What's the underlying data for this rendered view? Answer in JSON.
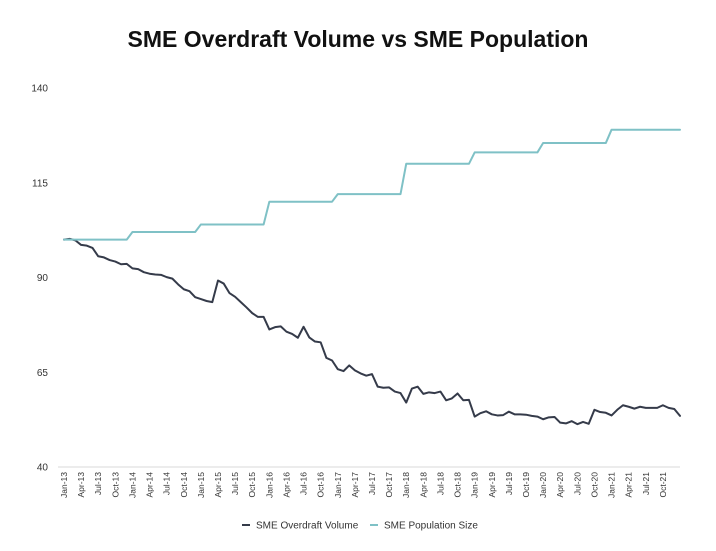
{
  "chart_data": {
    "type": "line",
    "title": "SME Overdraft Volume vs SME Population",
    "xlabel": "",
    "ylabel": "",
    "ylim": [
      40,
      140
    ],
    "yticks": [
      40,
      65,
      90,
      115,
      140
    ],
    "x_tick_labels": [
      "Jan-13",
      "Apr-13",
      "Jul-13",
      "Oct-13",
      "Jan-14",
      "Apr-14",
      "Jul-14",
      "Oct-14",
      "Jan-15",
      "Apr-15",
      "Jul-15",
      "Oct-15",
      "Jan-16",
      "Apr-16",
      "Jul-16",
      "Oct-16",
      "Jan-17",
      "Apr-17",
      "Jul-17",
      "Oct-17",
      "Jan-18",
      "Apr-18",
      "Jul-18",
      "Oct-18",
      "Jan-19",
      "Apr-19",
      "Jul-19",
      "Oct-19",
      "Jan-20",
      "Apr-20",
      "Jul-20",
      "Oct-20",
      "Jan-21",
      "Apr-21",
      "Jul-21",
      "Oct-21"
    ],
    "legend_position": "bottom",
    "series": [
      {
        "name": "SME Overdraft Volume",
        "color": "#353b4a",
        "values": [
          100,
          100.2,
          99.8,
          98.6,
          98.4,
          97.8,
          95.6,
          95.3,
          94.6,
          94.2,
          93.5,
          93.6,
          92.4,
          92.2,
          91.4,
          91.0,
          90.8,
          90.7,
          90.1,
          89.7,
          88.2,
          86.9,
          86.4,
          84.8,
          84.3,
          83.8,
          83.5,
          89.2,
          88.4,
          85.9,
          84.9,
          83.5,
          82.1,
          80.6,
          79.6,
          79.6,
          76.3,
          76.9,
          77.1,
          75.7,
          75.1,
          74.1,
          77.0,
          74.2,
          73.1,
          72.9,
          68.8,
          68.1,
          65.8,
          65.3,
          66.8,
          65.5,
          64.7,
          64.1,
          64.5,
          61.2,
          60.9,
          61.0,
          59.9,
          59.5,
          57.0,
          60.7,
          61.2,
          59.3,
          59.7,
          59.5,
          59.9,
          57.6,
          58.1,
          59.4,
          57.6,
          57.7,
          53.3,
          54.2,
          54.7,
          53.9,
          53.6,
          53.7,
          54.6,
          53.9,
          53.9,
          53.8,
          53.5,
          53.3,
          52.6,
          53.1,
          53.2,
          51.7,
          51.5,
          52.1,
          51.3,
          51.9,
          51.4,
          55.1,
          54.5,
          54.3,
          53.6,
          55.1,
          56.3,
          55.9,
          55.4,
          55.9,
          55.6,
          55.6,
          55.6,
          56.3,
          55.6,
          55.3,
          53.5
        ]
      },
      {
        "name": "SME Population Size",
        "color": "#7fc1c6",
        "values": [
          100,
          100,
          100,
          100,
          100,
          100,
          100,
          100,
          100,
          100,
          100,
          100,
          102,
          102,
          102,
          102,
          102,
          102,
          102,
          102,
          102,
          102,
          102,
          102,
          104,
          104,
          104,
          104,
          104,
          104,
          104,
          104,
          104,
          104,
          104,
          104,
          110,
          110,
          110,
          110,
          110,
          110,
          110,
          110,
          110,
          110,
          110,
          110,
          112,
          112,
          112,
          112,
          112,
          112,
          112,
          112,
          112,
          112,
          112,
          112,
          120,
          120,
          120,
          120,
          120,
          120,
          120,
          120,
          120,
          120,
          120,
          120,
          123,
          123,
          123,
          123,
          123,
          123,
          123,
          123,
          123,
          123,
          123,
          123,
          125.5,
          125.5,
          125.5,
          125.5,
          125.5,
          125.5,
          125.5,
          125.5,
          125.5,
          125.5,
          125.5,
          125.5,
          129,
          129,
          129,
          129,
          129,
          129,
          129,
          129,
          129,
          129,
          129,
          129,
          129
        ]
      }
    ]
  }
}
